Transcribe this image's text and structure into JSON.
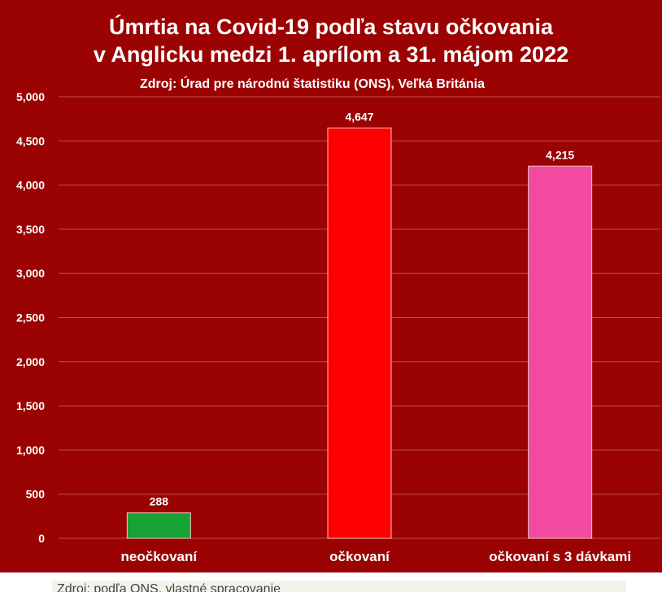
{
  "colors": {
    "background": "#9b0202",
    "grid": "#c0504d",
    "text": "#ffffff"
  },
  "chart_data": {
    "type": "bar",
    "title_line1": "Úmrtia na Covid-19 podľa stavu očkovania",
    "title_line2": "v Anglicku medzi 1. aprílom a 31. májom 2022",
    "subtitle": "Zdroj: Úrad pre národnú štatistiku (ONS), Veľká Británia",
    "categories": [
      "neočkovaní",
      "očkovaní",
      "očkovaní s 3 dávkami"
    ],
    "values": [
      288,
      4647,
      4215
    ],
    "value_labels": [
      "288",
      "4,647",
      "4,215"
    ],
    "bar_colors": [
      "#16a334",
      "#ff0000",
      "#f24a9e"
    ],
    "ylim": [
      0,
      5000
    ],
    "yticks": [
      0,
      500,
      1000,
      1500,
      2000,
      2500,
      3000,
      3500,
      4000,
      4500,
      5000
    ],
    "ytick_labels": [
      "0",
      "500",
      "1,000",
      "1,500",
      "2,000",
      "2,500",
      "3,000",
      "3,500",
      "4,000",
      "4,500",
      "5,000"
    ],
    "grid": true,
    "xlabel": "",
    "ylabel": ""
  },
  "caption_partial": "Zdroj: podľa ONS, vlastné spracovanie"
}
